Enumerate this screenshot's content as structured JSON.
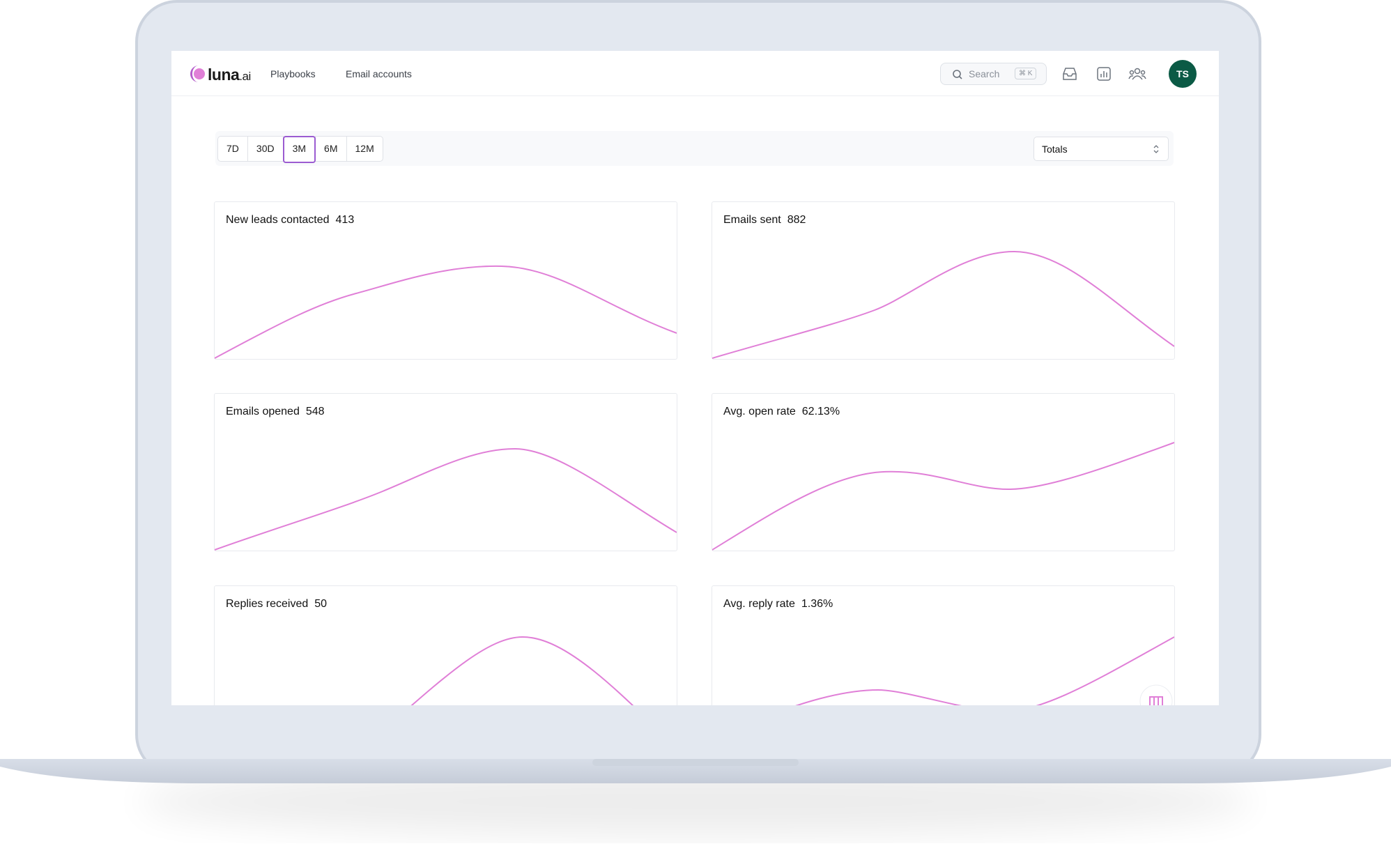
{
  "header": {
    "logo": {
      "name": "luna",
      "suffix": ".ai"
    },
    "nav": [
      "Playbooks",
      "Email accounts"
    ],
    "search": {
      "placeholder": "Search",
      "shortcut": "⌘ K"
    },
    "avatar": "TS"
  },
  "toolbar": {
    "periods": [
      "7D",
      "30D",
      "3M",
      "6M",
      "12M"
    ],
    "selected_period": 2,
    "select": "Totals"
  },
  "cards": [
    {
      "title": "New leads contacted",
      "value": "413"
    },
    {
      "title": "Emails sent",
      "value": "882"
    },
    {
      "title": "Emails opened",
      "value": "548"
    },
    {
      "title": "Avg. open rate",
      "value": "62.13%"
    },
    {
      "title": "Replies received",
      "value": "50"
    },
    {
      "title": "Avg. reply rate",
      "value": "1.36%"
    }
  ]
}
